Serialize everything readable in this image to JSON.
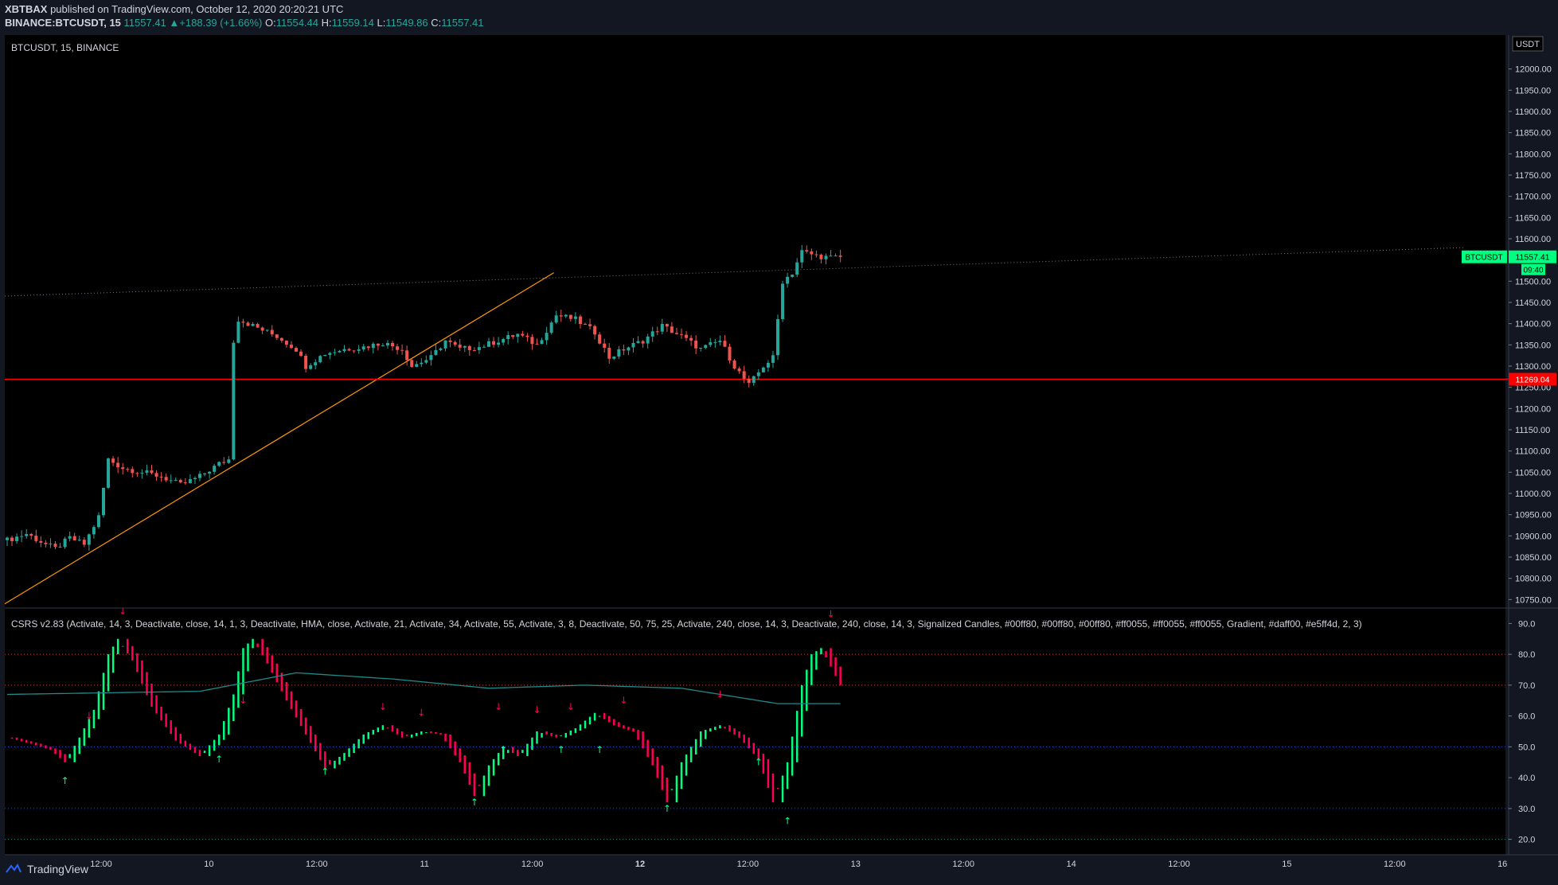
{
  "header": {
    "author": "XBTBAX",
    "published": "published on TradingView.com, October 12, 2020 20:20:21 UTC",
    "symbol_full": "BINANCE:BTCUSDT, 15",
    "last": "11557.41",
    "change": "+188.39 (+1.66%)",
    "o_label": "O:",
    "o": "11554.44",
    "h_label": "H:",
    "h": "11559.14",
    "l_label": "L:",
    "l": "11549.86",
    "c_label": "C:",
    "c": "11557.41"
  },
  "main_pane": {
    "legend": "BTCUSDT, 15, BINANCE",
    "currency": "USDT"
  },
  "indicator_pane": {
    "legend": "CSRS v2.83 (Activate, 14, 3, Deactivate, close, 14, 1, 3, Deactivate, HMA, close, Activate, 21, Activate, 34, Activate, 55, Activate, 3, 8, Deactivate, 50, 75, 25, Activate, 240, close, 14, 3, Deactivate, 240, close, 14, 3, Signalized Candles, #00ff80, #00ff80, #00ff80, #ff0055, #ff0055, #ff0055, Gradient, #daff00, #e5ff4d, 2, 3)"
  },
  "price_labels": {
    "symbol": "BTCUSDT",
    "price": "11557.41",
    "countdown": "09:40",
    "support": "11269.04"
  },
  "footer": {
    "brand": "TradingView"
  },
  "colors": {
    "bg": "#131722",
    "pane_bg": "#000000",
    "up": "#26a69a",
    "down": "#ef5350",
    "support": "#ff0000",
    "trendline": "#ff9800",
    "osc_up": "#00ff80",
    "osc_down": "#ff0055"
  },
  "chart_data": [
    {
      "type": "candlestick",
      "title": "BTCUSDT, 15, BINANCE",
      "ylabel": "USDT",
      "ylim": [
        10730,
        12080
      ],
      "y_ticks": [
        10750,
        10800,
        10850,
        10900,
        10950,
        11000,
        11050,
        11100,
        11150,
        11200,
        11250,
        11300,
        11350,
        11400,
        11450,
        11500,
        11550,
        11600,
        11650,
        11700,
        11750,
        11800,
        11850,
        11900,
        11950,
        12000
      ],
      "y_tick_labels": [
        "10750.00",
        "10800.00",
        "10850.00",
        "10900.00",
        "10950.00",
        "11000.00",
        "11050.00",
        "11100.00",
        "11150.00",
        "11200.00",
        "11250.00",
        "11300.00",
        "11350.00",
        "11400.00",
        "11450.00",
        "11500.00",
        "11550.00",
        "11600.00",
        "11650.00",
        "11700.00",
        "11750.00",
        "11800.00",
        "11850.00",
        "11900.00",
        "11950.00",
        "12000.00"
      ],
      "x_tick_labels": [
        "12:00",
        "10",
        "12:00",
        "11",
        "12:00",
        "12",
        "12:00",
        "13",
        "12:00",
        "14",
        "12:00",
        "15",
        "12:00",
        "16"
      ],
      "close_path": [
        [
          0,
          10890
        ],
        [
          4,
          10905
        ],
        [
          8,
          10880
        ],
        [
          10,
          10870
        ],
        [
          13,
          10895
        ],
        [
          16,
          10880
        ],
        [
          19,
          10945
        ],
        [
          21,
          11080
        ],
        [
          24,
          11060
        ],
        [
          28,
          11050
        ],
        [
          32,
          11040
        ],
        [
          36,
          11020
        ],
        [
          40,
          11040
        ],
        [
          44,
          11070
        ],
        [
          46,
          11080
        ],
        [
          47,
          11360
        ],
        [
          48,
          11410
        ],
        [
          52,
          11390
        ],
        [
          56,
          11370
        ],
        [
          60,
          11340
        ],
        [
          62,
          11300
        ],
        [
          66,
          11330
        ],
        [
          70,
          11340
        ],
        [
          74,
          11345
        ],
        [
          78,
          11355
        ],
        [
          82,
          11340
        ],
        [
          84,
          11300
        ],
        [
          88,
          11320
        ],
        [
          91,
          11360
        ],
        [
          94,
          11340
        ],
        [
          98,
          11345
        ],
        [
          102,
          11360
        ],
        [
          106,
          11375
        ],
        [
          110,
          11350
        ],
        [
          114,
          11420
        ],
        [
          118,
          11410
        ],
        [
          122,
          11380
        ],
        [
          125,
          11320
        ],
        [
          128,
          11340
        ],
        [
          132,
          11360
        ],
        [
          136,
          11395
        ],
        [
          140,
          11370
        ],
        [
          144,
          11340
        ],
        [
          148,
          11360
        ],
        [
          151,
          11300
        ],
        [
          154,
          11255
        ],
        [
          157,
          11300
        ],
        [
          159,
          11320
        ],
        [
          161,
          11500
        ],
        [
          163,
          11520
        ],
        [
          165,
          11570
        ],
        [
          168,
          11560
        ],
        [
          171,
          11555
        ],
        [
          173,
          11557.41
        ]
      ],
      "lines": [
        {
          "name": "trend-dotted",
          "points": [
            [
              0,
              11465
            ],
            [
              305,
              11580
            ]
          ]
        },
        {
          "name": "trend-orange",
          "points": [
            [
              0,
              10740
            ],
            [
              114,
              11520
            ]
          ]
        },
        {
          "name": "support",
          "value": 11269.04
        }
      ]
    },
    {
      "type": "line",
      "title": "CSRS v2.83",
      "ylim": [
        15,
        95
      ],
      "y_ticks": [
        20,
        30,
        40,
        50,
        60,
        70,
        80,
        90
      ],
      "y_tick_labels": [
        "20.0",
        "30.0",
        "40.0",
        "50.0",
        "60.0",
        "70.0",
        "80.0",
        "90.0"
      ],
      "bands": [
        80,
        70,
        50,
        30,
        20
      ],
      "series": [
        {
          "values_path": [
            [
              0,
              53
            ],
            [
              5,
              51
            ],
            [
              9,
              49
            ],
            [
              12,
              45
            ],
            [
              15,
              53
            ],
            [
              18,
              62
            ],
            [
              21,
              80
            ],
            [
              23,
              85
            ],
            [
              26,
              78
            ],
            [
              30,
              63
            ],
            [
              35,
              52
            ],
            [
              40,
              47
            ],
            [
              44,
              54
            ],
            [
              47,
              67
            ],
            [
              49,
              82
            ],
            [
              51,
              85
            ],
            [
              54,
              77
            ],
            [
              58,
              65
            ],
            [
              62,
              54
            ],
            [
              66,
              43
            ],
            [
              70,
              48
            ],
            [
              74,
              54
            ],
            [
              78,
              57
            ],
            [
              82,
              53
            ],
            [
              86,
              55
            ],
            [
              90,
              54
            ],
            [
              94,
              45
            ],
            [
              97,
              34
            ],
            [
              100,
              44
            ],
            [
              103,
              50
            ],
            [
              106,
              47
            ],
            [
              110,
              55
            ],
            [
              114,
              53
            ],
            [
              118,
              56
            ],
            [
              122,
              61
            ],
            [
              126,
              57
            ],
            [
              130,
              55
            ],
            [
              134,
              44
            ],
            [
              137,
              32
            ],
            [
              140,
              45
            ],
            [
              144,
              55
            ],
            [
              148,
              57
            ],
            [
              152,
              53
            ],
            [
              156,
              46
            ],
            [
              159,
              32
            ],
            [
              162,
              45
            ],
            [
              165,
              70
            ],
            [
              167,
              80
            ],
            [
              169,
              82
            ],
            [
              171,
              76
            ],
            [
              173,
              70
            ]
          ],
          "signal_path": [
            [
              0,
              67
            ],
            [
              40,
              68
            ],
            [
              60,
              74
            ],
            [
              80,
              72
            ],
            [
              100,
              69
            ],
            [
              120,
              70
            ],
            [
              140,
              69
            ],
            [
              160,
              64
            ],
            [
              173,
              64
            ]
          ]
        }
      ],
      "signals_up": [
        [
          12,
          38
        ],
        [
          44,
          45
        ],
        [
          66,
          41
        ],
        [
          97,
          31
        ],
        [
          103,
          48
        ],
        [
          115,
          48
        ],
        [
          123,
          48
        ],
        [
          137,
          29
        ],
        [
          156,
          44
        ],
        [
          162,
          25
        ]
      ],
      "signals_down": [
        [
          17,
          59
        ],
        [
          49,
          64
        ],
        [
          78,
          62
        ],
        [
          86,
          60
        ],
        [
          102,
          62
        ],
        [
          110,
          61
        ],
        [
          117,
          62
        ],
        [
          128,
          64
        ],
        [
          148,
          66
        ],
        [
          171,
          92
        ],
        [
          24,
          93
        ]
      ]
    }
  ]
}
